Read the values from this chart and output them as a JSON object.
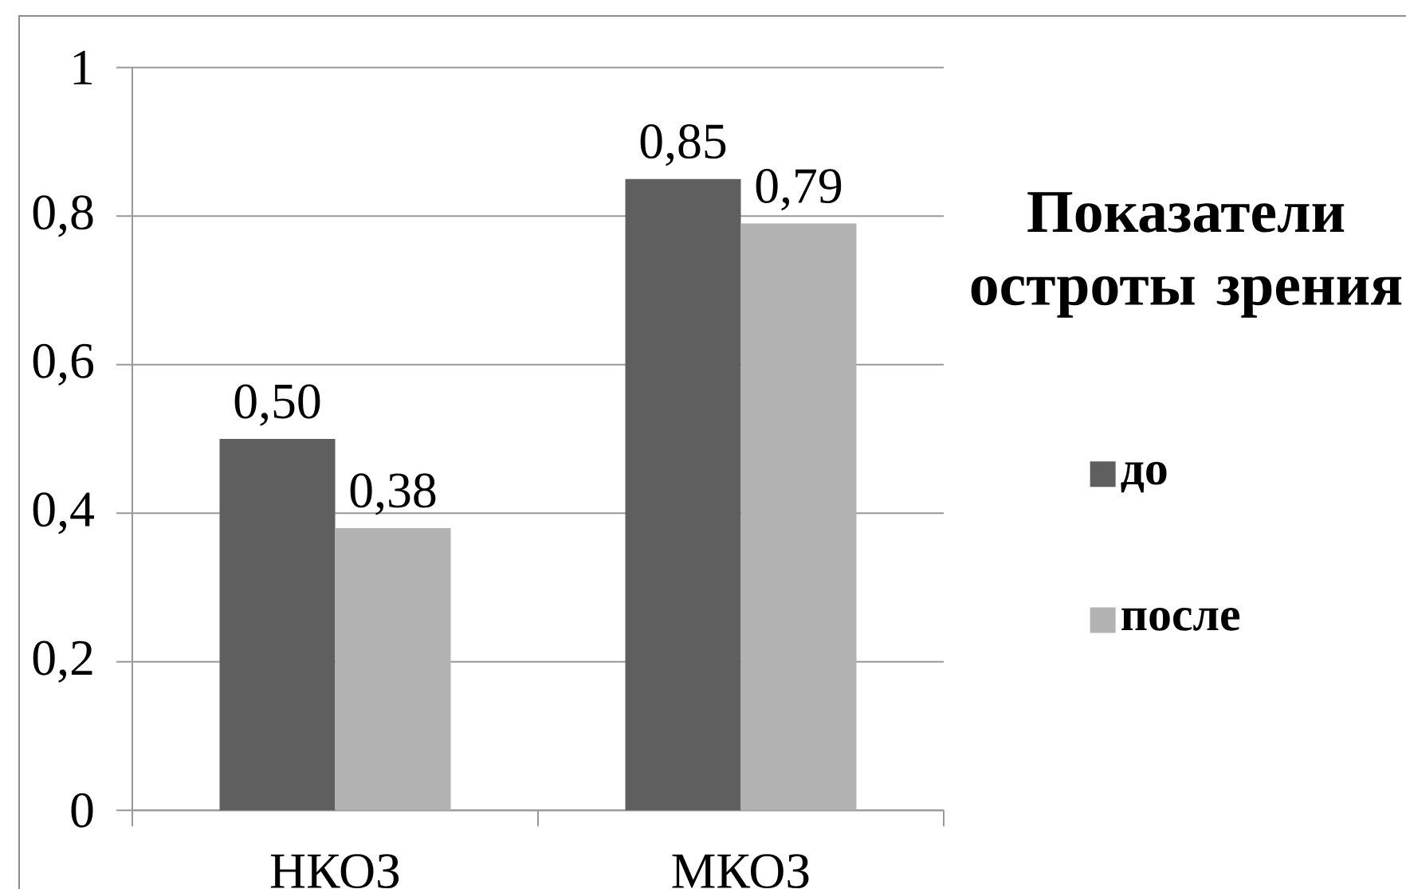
{
  "chart_data": {
    "type": "bar",
    "categories": [
      "НКОЗ",
      "МКОЗ"
    ],
    "series": [
      {
        "name": "до",
        "color": "#5f5f5f",
        "values": [
          0.5,
          0.85
        ],
        "value_labels": [
          "0,50",
          "0,85"
        ]
      },
      {
        "name": "после",
        "color": "#b2b2b2",
        "values": [
          0.38,
          0.79
        ],
        "value_labels": [
          "0,38",
          "0,79"
        ]
      }
    ],
    "legend_title": "Показатели остроты зрения",
    "ylim": [
      0,
      1
    ],
    "yticks": [
      0,
      {
        "value": 0.2,
        "label": "0,2"
      },
      {
        "value": 0.4,
        "label": "0,4"
      },
      {
        "value": 0.6,
        "label": "0,6"
      },
      {
        "value": 0.8,
        "label": "0,8"
      },
      1
    ],
    "grid": "y",
    "legend": "right"
  }
}
